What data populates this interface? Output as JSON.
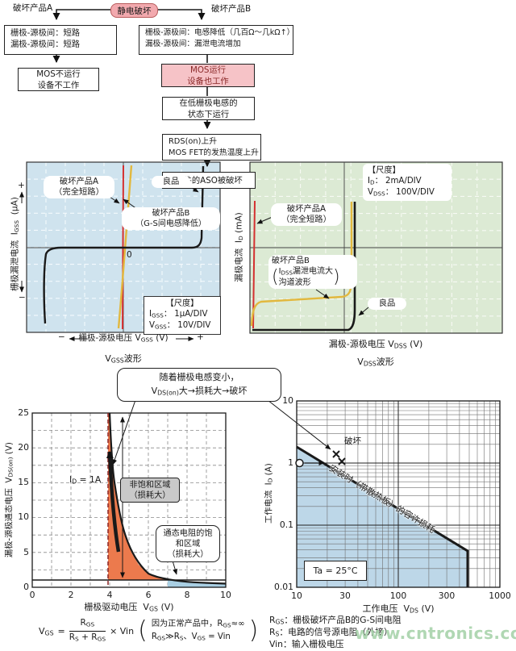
{
  "flow": {
    "root": "静电破坏",
    "branch_a": "破坏产品A",
    "branch_b": "破坏产品B",
    "a1l1": "栅极-源极间：短路",
    "a1l2": "漏极-源极间：短路",
    "a2l1": "MOS不运行",
    "a2l2": "设备不工作",
    "b1l1": "栅极-源极间：电感降低（几百Ω～几kΩ↑）",
    "b1l2": "漏极-源极间：漏泄电流增加",
    "b2l1": "MOS运行",
    "b2l2": "设备也工作",
    "b3l1": "在低栅极电感的",
    "b3l2": "状态下运行",
    "b4l1": "RDS(on)上升",
    "b4l2": "MOS FET的发热温度上升",
    "b5": "器件的ASO被破坏"
  },
  "gss": {
    "ylabel_cjk": "栅极漏泄电流",
    "ysym": "I",
    "ysub": "GSS",
    "yunit": "(μA)",
    "yplus": "+",
    "yminus": "−",
    "prodA1": "破坏产品A",
    "prodA2": "（完全短路）",
    "good": "良品",
    "prodB1": "破坏产品B",
    "prodB2": "（G-S间电感降低）",
    "zero": "0",
    "scale_title": "【尺度】",
    "s1p": "I",
    "s1s": "GSS",
    "s1v": "： 1μA/DIV",
    "s2p": "V",
    "s2s": "GSS",
    "s2v": "： 10V/DIV",
    "xminus": "−",
    "xplus": "+",
    "xlabel": "栅极-源极电压",
    "xsym": "V",
    "xsub": "GSS",
    "xunit": "(V)",
    "capp": "V",
    "caps": "GSS",
    "capt": "波形"
  },
  "dss": {
    "ylabel_cjk": "漏极电流",
    "ysym": "I",
    "ysub": "D",
    "yunit": "(mA)",
    "scale_title": "【尺度】",
    "s1p": "I",
    "s1s": "D",
    "s1v": "： 2mA/DIV",
    "s2p": "V",
    "s2s": "DSS",
    "s2v": "： 100V/DIV",
    "prodA1": "破坏产品A",
    "prodA2": "（完全短路）",
    "prodB1": "破坏产品B",
    "prodB2p": "I",
    "prodB2s": "DSS",
    "prodB2t": "漏泄电流大",
    "prodB3": "沟道波形",
    "good": "良品",
    "xlabel": "漏极-源极电压",
    "xsym": "V",
    "xsub": "DSS",
    "xunit": "(V)",
    "capp": "V",
    "caps": "DSS",
    "capt": "波形"
  },
  "bubble": {
    "l1": "随着栅极电感变小，",
    "l2p": "V",
    "l2s": "DS(on)",
    "l2t": "大→损耗大→破坏"
  },
  "vgs_labels": {
    "ylabel_cjk": "漏极-源极通态电压",
    "ysym": "V",
    "ysub": "DS(on)",
    "yunit": "(V)",
    "idp": "I",
    "ids": "D",
    "idt": " = 1A",
    "r1l1": "非饱和区域",
    "r1l2": "（损耗大）",
    "r2l1": "通态电阻的饱",
    "r2l2": "和区域",
    "r2l3": "（损耗大）",
    "xlabel": "栅极驱动电压",
    "xsym": "V",
    "xsub": "GS",
    "xunit": "(V)"
  },
  "vds_labels": {
    "ylabel_cjk": "工作电流",
    "ysym": "I",
    "ysub": "D",
    "yunit": "(A)",
    "destroy": "破坏",
    "diag": "安装时（带散热板）的容许损耗",
    "ta": "Ta = 25°C",
    "xlabel": "工作电压",
    "xsym": "V",
    "xsub": "DS",
    "xunit": "(V)"
  },
  "formula": {
    "lp": "V",
    "ls": "GS",
    "eq": "=",
    "np": "R",
    "ns": "GS",
    "d1p": "R",
    "d1s": "S",
    "dplus": " + ",
    "d2p": "R",
    "d2s": "GS",
    "mul": "× Vin",
    "p1a": "因为正常产品中，",
    "p1rp": "R",
    "p1rs": "GS",
    "p1b": "≈∞",
    "p2ap": "R",
    "p2as": "GS",
    "p2b": "≫",
    "p2cp": "R",
    "p2cs": "S",
    "p2d": "、",
    "p2ep": "V",
    "p2es": "GS",
    "p2f": " = Vin"
  },
  "notes": {
    "r1p": "R",
    "r1s": "GS",
    "r1t": "：栅极破坏产品B的G-S间电阻",
    "r2p": "R",
    "r2s": "S",
    "r2t": "：电路的信号源电阻（外接）",
    "r3p": "Vin",
    "r3t": "：输入栅极电压"
  },
  "watermark": "www.cntronics.com",
  "colors": {
    "pink_box": "#f6c3c7",
    "pink_root": "#f2a9ae",
    "scope1_bg": "#cfe3ee",
    "scope2_bg": "#dcead4",
    "red_curve": "#d43030",
    "yellow_curve": "#e2b83e",
    "orange_region": "#ec7a4d",
    "blue_region": "#a9cfe3",
    "vds_blue_region": "#bdd7e8",
    "maroon_dashed": "#8b2525",
    "watermark_green": "#a8d3ab"
  },
  "chart_data": [
    {
      "type": "line",
      "title": "V_GSS波形",
      "xlabel": "栅极-源极电压 V_GSS (V)",
      "ylabel": "栅极漏泄电流 I_GSS (μA)",
      "x_scale": "10V/DIV",
      "y_scale": "1μA/DIV",
      "series": [
        {
          "name": "破坏产品A（完全短路）",
          "shape": "vertical line at V=0 (dead short)"
        },
        {
          "name": "破坏产品B（G-S间电感降低）",
          "shape": "steep resistive line through origin"
        },
        {
          "name": "良品",
          "shape": "zero leakage between breakdown knees at about ±45V (±4.5 DIV)"
        }
      ]
    },
    {
      "type": "line",
      "title": "V_DSS波形",
      "xlabel": "漏极-源极电压 V_DSS (V)",
      "ylabel": "漏极电流 I_D (mA)",
      "x_scale": "100V/DIV",
      "y_scale": "2mA/DIV",
      "series": [
        {
          "name": "破坏产品A（完全短路）",
          "shape": "vertical line near V=0 (dead short)"
        },
        {
          "name": "破坏产品B（IDSS漏泄电流大 沟道波形）",
          "shape": "rising leakage current then breakdown near 400V (4 DIV)"
        },
        {
          "name": "良品",
          "shape": "zero current until sharp breakdown near 400V (4 DIV)"
        }
      ]
    },
    {
      "type": "line",
      "xlabel": "栅极驱动电压 V_GS (V)",
      "ylabel": "漏极-源极通态电压 V_DS(on) (V)",
      "xlim": [
        0,
        10
      ],
      "ylim": [
        0,
        25
      ],
      "xticks": [
        "0",
        "2",
        "4",
        "6",
        "8",
        "10"
      ],
      "yticks": [
        "25",
        "20",
        "15",
        "10",
        "5",
        "0"
      ],
      "series": [
        {
          "name": "I_D = 1A",
          "points": [
            [
              4.0,
              25
            ],
            [
              4.2,
              18
            ],
            [
              4.4,
              12
            ],
            [
              4.6,
              9
            ],
            [
              5.0,
              6.5
            ],
            [
              5.5,
              4.0
            ],
            [
              6.0,
              2.8
            ],
            [
              6.5,
              1.8
            ],
            [
              7.0,
              1.05
            ],
            [
              8.0,
              0.8
            ],
            [
              9.0,
              0.65
            ],
            [
              10.0,
              0.55
            ]
          ]
        }
      ],
      "reference_line_y": 1,
      "regions": [
        {
          "name": "非饱和区域（损耗大）",
          "x_range": [
            3.9,
            7
          ],
          "color": "#ec7a4d"
        },
        {
          "name": "通态电阻的饱和区域（损耗大）",
          "x_range": [
            7,
            10
          ],
          "color": "#a9cfe3"
        }
      ]
    },
    {
      "type": "line",
      "xlabel": "工作电压 V_DS (V)",
      "ylabel": "工作电流 I_D (A)",
      "xscale": "log",
      "yscale": "log",
      "xlim": [
        10,
        1000
      ],
      "ylim": [
        0.01,
        10
      ],
      "xticks": [
        "10",
        "30",
        "100",
        "300",
        "1000"
      ],
      "yticks": [
        "10",
        "1",
        "0.1",
        "0.01"
      ],
      "series": [
        {
          "name": "安装时（带散热板）的容许损耗",
          "points": [
            [
              10,
              1.8
            ],
            [
              500,
              0.036
            ],
            [
              500,
              0.01
            ]
          ]
        },
        {
          "name": "破坏",
          "marker": "x",
          "points": [
            [
              22,
              1.15
            ],
            [
              27,
              1.0
            ]
          ]
        },
        {
          "name": "工作点",
          "marker": "o",
          "points": [
            [
              10,
              1
            ]
          ]
        }
      ],
      "annotations": [
        "Ta = 25°C"
      ]
    }
  ]
}
